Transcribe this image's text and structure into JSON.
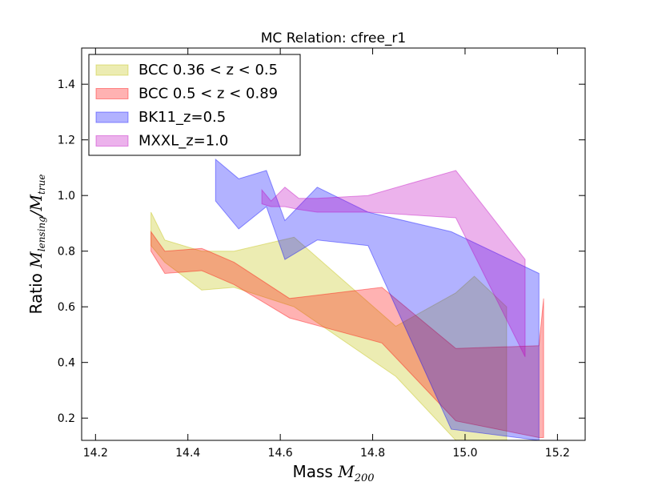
{
  "chart_data": {
    "type": "area",
    "title": "MC Relation: cfree_r1",
    "xlabel": {
      "prefix": "Mass ",
      "math": "M",
      "sub": "200"
    },
    "ylabel": {
      "prefix": "Ratio ",
      "m1": "M",
      "s1": "lensing",
      "m2": "M",
      "s2": "true",
      "slash": "/"
    },
    "xlim": [
      14.17,
      15.26
    ],
    "ylim": [
      0.12,
      1.53
    ],
    "xticks": [
      14.2,
      14.4,
      14.6,
      14.8,
      15.0,
      15.2
    ],
    "yticks": [
      0.2,
      0.4,
      0.6,
      0.8,
      1.0,
      1.2,
      1.4
    ],
    "legend_position": "top-left",
    "series": [
      {
        "name": "BCC 0.36 < z < 0.5",
        "color": "#bfbf00",
        "opacity": 0.3,
        "x": [
          14.32,
          14.35,
          14.43,
          14.5,
          14.63,
          14.85,
          14.98,
          15.02,
          15.09
        ],
        "upper": [
          0.94,
          0.84,
          0.8,
          0.8,
          0.85,
          0.53,
          0.65,
          0.71,
          0.6
        ],
        "lower": [
          0.82,
          0.76,
          0.66,
          0.67,
          0.6,
          0.35,
          0.12,
          0.12,
          0.12
        ]
      },
      {
        "name": "BCC 0.5 < z < 0.89",
        "color": "#ff0000",
        "opacity": 0.3,
        "x": [
          14.32,
          14.35,
          14.43,
          14.5,
          14.62,
          14.82,
          14.98,
          15.16,
          15.17
        ],
        "upper": [
          0.87,
          0.8,
          0.81,
          0.76,
          0.63,
          0.67,
          0.45,
          0.46,
          0.63
        ],
        "lower": [
          0.8,
          0.72,
          0.73,
          0.68,
          0.56,
          0.47,
          0.19,
          0.13,
          0.13
        ]
      },
      {
        "name": "BK11_z=0.5",
        "color": "#0000ff",
        "opacity": 0.3,
        "x": [
          14.46,
          14.51,
          14.57,
          14.61,
          14.68,
          14.79,
          14.97,
          15.16
        ],
        "upper": [
          1.13,
          1.06,
          1.09,
          0.91,
          1.03,
          0.94,
          0.87,
          0.72
        ],
        "lower": [
          0.98,
          0.88,
          0.96,
          0.77,
          0.84,
          0.82,
          0.16,
          0.12
        ]
      },
      {
        "name": "MXXL_z=1.0",
        "color": "#bf00bf",
        "opacity": 0.3,
        "x": [
          14.56,
          14.58,
          14.61,
          14.64,
          14.68,
          14.79,
          14.98,
          15.13
        ],
        "upper": [
          1.02,
          0.98,
          1.03,
          0.99,
          0.99,
          1.0,
          1.09,
          0.77
        ],
        "lower": [
          0.97,
          0.96,
          0.96,
          0.95,
          0.94,
          0.94,
          0.92,
          0.42
        ]
      }
    ]
  }
}
